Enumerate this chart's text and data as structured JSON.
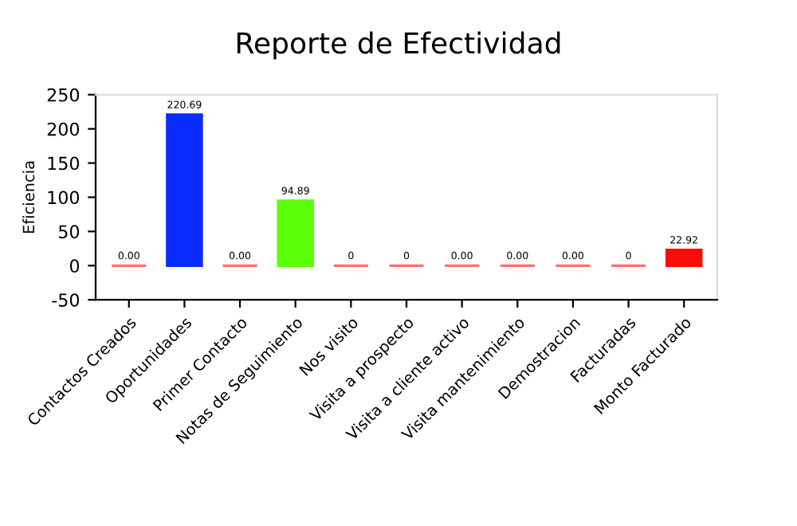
{
  "chart_data": {
    "type": "bar",
    "title": "Reporte de Efectividad",
    "ylabel": "Eficiencia",
    "categories": [
      "Contactos Creados",
      "Oportunidades",
      "Primer Contacto",
      "Notas de Seguimiento",
      "Nos visito",
      "Visita a prospecto",
      "Visita a cliente activo",
      "Visita mantenimiento",
      "Demostracion",
      "Facturadas",
      "Monto Facturado"
    ],
    "values": [
      0,
      220.69,
      0,
      94.89,
      0,
      0,
      0,
      0,
      0,
      0,
      22.92
    ],
    "colors": [
      "#ff7070",
      "#0a2cff",
      "#ff7070",
      "#5cff0a",
      "#ff7070",
      "#ff7070",
      "#ff7070",
      "#ff7070",
      "#ff7070",
      "#ff7070",
      "#ff0a0a"
    ],
    "value_labels": [
      "0.00",
      "220.69",
      "0.00",
      "94.89",
      "0",
      "0",
      "0.00",
      "0.00",
      "0.00",
      "0",
      "22.92"
    ],
    "ylim": [
      -50,
      250
    ],
    "yticks": [
      -50,
      0,
      50,
      100,
      150,
      200,
      250
    ],
    "grid": false
  }
}
